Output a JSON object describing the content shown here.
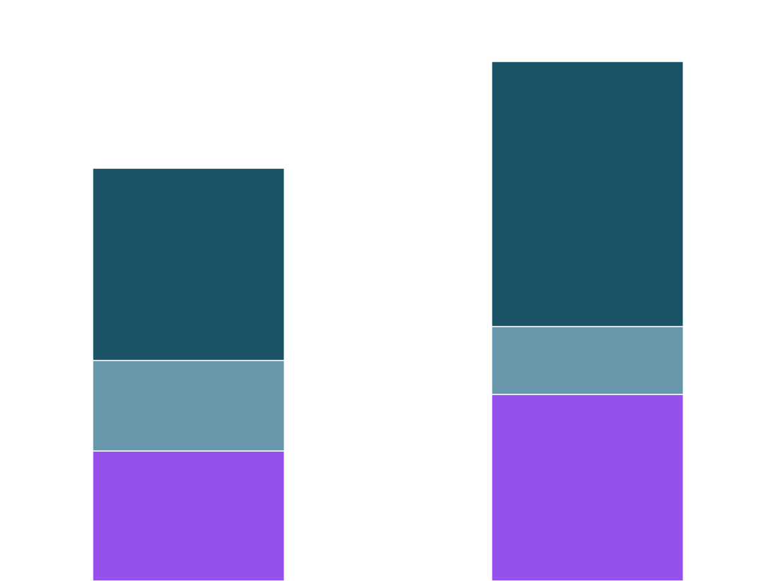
{
  "chart_data": {
    "type": "bar",
    "stacked": true,
    "categories": [
      "",
      ""
    ],
    "series": [
      {
        "values": [
          184,
          264
        ],
        "color": "#9650EB"
      },
      {
        "values": [
          128,
          96
        ],
        "color": "#6896AA"
      },
      {
        "values": [
          272,
          375
        ],
        "color": "#1B5266"
      }
    ],
    "ylim": [
      0,
      822
    ],
    "grid": false,
    "legend": "none",
    "axes_visible": false,
    "segment_separator_color": "#ffffff"
  }
}
